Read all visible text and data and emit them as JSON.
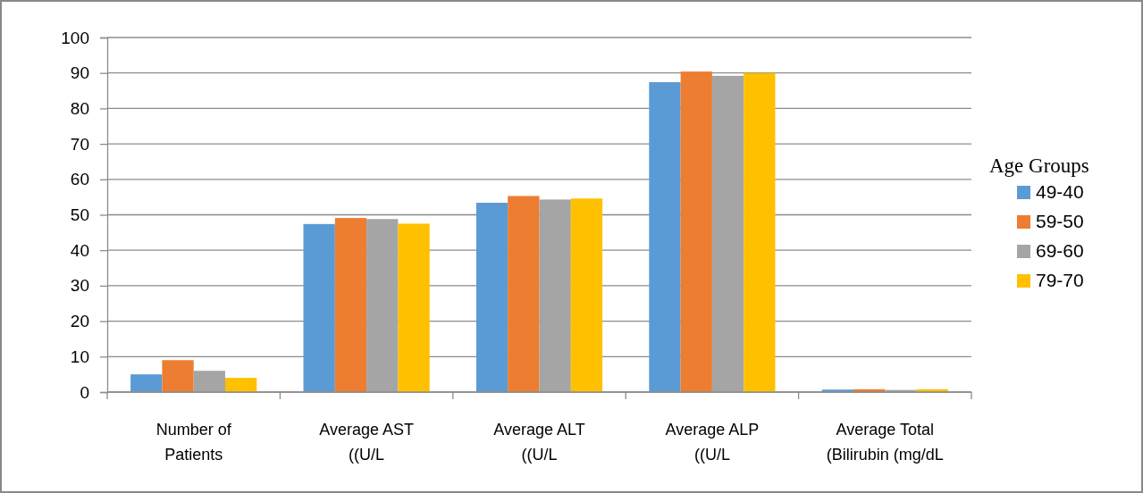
{
  "chart_data": {
    "type": "bar",
    "categories": [
      "Number of\nPatients",
      "Average AST\n((U/L",
      "Average ALT\n((U/L",
      "Average ALP\n((U/L",
      "Average Total\n(Bilirubin (mg/dL"
    ],
    "series": [
      {
        "name": "49-40",
        "color": "#5b9bd5",
        "values": [
          5,
          47.4,
          53.4,
          87.4,
          0.7
        ]
      },
      {
        "name": "59-50",
        "color": "#ed7d31",
        "values": [
          9,
          49.1,
          55.3,
          90.4,
          0.8
        ]
      },
      {
        "name": "69-60",
        "color": "#a5a5a5",
        "values": [
          6,
          48.8,
          54.3,
          89.2,
          0.6
        ]
      },
      {
        "name": "79-70",
        "color": "#ffc000",
        "values": [
          4,
          47.5,
          54.6,
          90.0,
          0.8
        ]
      }
    ],
    "ylim": [
      0,
      100
    ],
    "yticks": [
      0,
      10,
      20,
      30,
      40,
      50,
      60,
      70,
      80,
      90,
      100
    ],
    "grid": "y",
    "legend": "right",
    "legend_title": "Age Groups"
  }
}
